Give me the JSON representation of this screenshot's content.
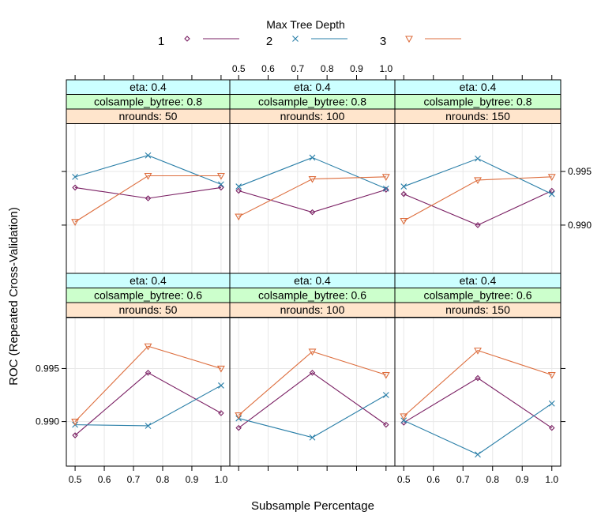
{
  "legend": {
    "title": "Max Tree Depth",
    "entries": [
      {
        "label": "1",
        "color": "#7a1f63",
        "marker": "diamond"
      },
      {
        "label": "2",
        "color": "#2a7fa8",
        "marker": "cross"
      },
      {
        "label": "3",
        "color": "#dd6e3e",
        "marker": "triangle-down"
      }
    ]
  },
  "axes": {
    "xlabel": "Subsample Percentage",
    "ylabel": "ROC (Repeated Cross-Validation)",
    "x_ticks": [
      "0.5",
      "0.6",
      "0.7",
      "0.8",
      "0.9",
      "1.0"
    ],
    "y_ticks": [
      "0.990",
      "0.995"
    ]
  },
  "colors": {
    "strip_eta": "#ccffff",
    "strip_colsample": "#ccffcc",
    "strip_nrounds": "#ffe5cc",
    "grid": "#e8e8e8"
  },
  "chart_data": {
    "type": "line",
    "title": "",
    "xlabel": "Subsample Percentage",
    "ylabel": "ROC (Repeated Cross-Validation)",
    "xlim": [
      0.47,
      1.03
    ],
    "x": [
      0.5,
      0.75,
      1.0
    ],
    "series_names": [
      "1",
      "2",
      "3"
    ],
    "grid": true,
    "legend_position": "top",
    "panels": [
      {
        "strips": [
          "eta: 0.4",
          "colsample_bytree: 0.8",
          "nrounds:  50"
        ],
        "ylim": [
          0.9855,
          0.9995
        ],
        "series": [
          {
            "values": [
              0.9935,
              0.9925,
              0.9935
            ]
          },
          {
            "values": [
              0.9945,
              0.9965,
              0.9938
            ]
          },
          {
            "values": [
              0.9903,
              0.9946,
              0.9946
            ]
          }
        ]
      },
      {
        "strips": [
          "eta: 0.4",
          "colsample_bytree: 0.8",
          "nrounds: 100"
        ],
        "ylim": [
          0.9855,
          0.9995
        ],
        "series": [
          {
            "values": [
              0.9932,
              0.9912,
              0.9933
            ]
          },
          {
            "values": [
              0.9936,
              0.9963,
              0.9934
            ]
          },
          {
            "values": [
              0.9908,
              0.9943,
              0.9945
            ]
          }
        ]
      },
      {
        "strips": [
          "eta: 0.4",
          "colsample_bytree: 0.8",
          "nrounds: 150"
        ],
        "ylim": [
          0.9855,
          0.9995
        ],
        "series": [
          {
            "values": [
              0.9929,
              0.99,
              0.9932
            ]
          },
          {
            "values": [
              0.9936,
              0.9962,
              0.9929
            ]
          },
          {
            "values": [
              0.9904,
              0.9942,
              0.9945
            ]
          }
        ]
      },
      {
        "strips": [
          "eta: 0.4",
          "colsample_bytree: 0.6",
          "nrounds:  50"
        ],
        "ylim": [
          0.9858,
          0.9998
        ],
        "series": [
          {
            "values": [
              0.9887,
              0.9946,
              0.9908
            ]
          },
          {
            "values": [
              0.9897,
              0.9896,
              0.9934
            ]
          },
          {
            "values": [
              0.99,
              0.9971,
              0.995
            ]
          }
        ]
      },
      {
        "strips": [
          "eta: 0.4",
          "colsample_bytree: 0.6",
          "nrounds: 100"
        ],
        "ylim": [
          0.9858,
          0.9998
        ],
        "series": [
          {
            "values": [
              0.9894,
              0.9946,
              0.9897
            ]
          },
          {
            "values": [
              0.9903,
              0.9885,
              0.9925
            ]
          },
          {
            "values": [
              0.9906,
              0.9966,
              0.9944
            ]
          }
        ]
      },
      {
        "strips": [
          "eta: 0.4",
          "colsample_bytree: 0.6",
          "nrounds: 150"
        ],
        "ylim": [
          0.9858,
          0.9998
        ],
        "series": [
          {
            "values": [
              0.9899,
              0.9941,
              0.9894
            ]
          },
          {
            "values": [
              0.9901,
              0.9869,
              0.9917
            ]
          },
          {
            "values": [
              0.9905,
              0.9967,
              0.9944
            ]
          }
        ]
      }
    ]
  }
}
